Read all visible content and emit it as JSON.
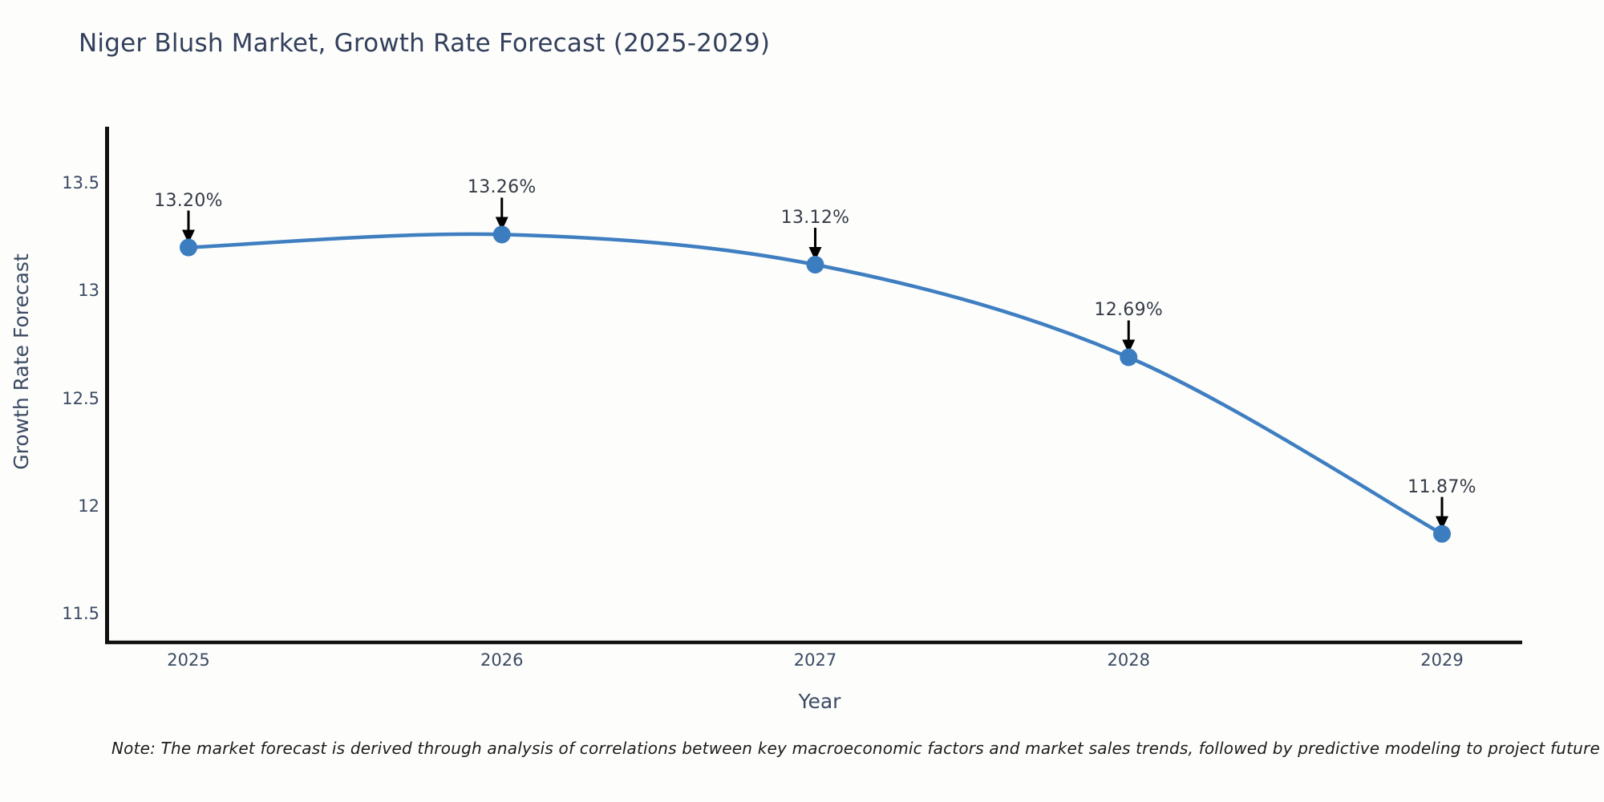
{
  "page": {
    "background_color": "#fdfdfb"
  },
  "chart_data": {
    "type": "line",
    "title": "Niger Blush Market, Growth Rate Forecast (2025-2029)",
    "xlabel": "Year",
    "ylabel": "Growth Rate Forecast",
    "categories": [
      "2025",
      "2026",
      "2027",
      "2028",
      "2029"
    ],
    "values": [
      13.2,
      13.26,
      13.12,
      12.69,
      11.87
    ],
    "point_labels": [
      "13.20%",
      "13.26%",
      "13.12%",
      "12.69%",
      "11.87%"
    ],
    "yticks": [
      13.5,
      13.0,
      12.5,
      12.0,
      11.5
    ],
    "ytick_labels": [
      "13.5",
      "13",
      "12.5",
      "12",
      "11.5"
    ],
    "ylim": [
      11.36,
      13.77
    ],
    "grid": false,
    "legend": "none",
    "line_color": "#3f7fc1",
    "marker_color": "#3c7dc0",
    "arrow_color": "#000000",
    "axis_color": "#111111",
    "annotation_style": "value labels above points with downward arrows"
  },
  "note": {
    "text": "Note: The market forecast is derived through analysis of correlations between key macroeconomic factors and market sales trends, followed by predictive modeling to project future sales"
  }
}
